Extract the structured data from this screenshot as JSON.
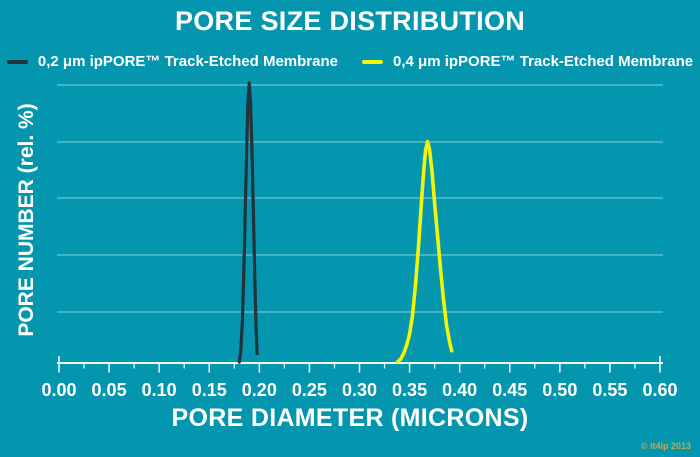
{
  "page": {
    "background_color": "#0496AE",
    "text_color": "#FFFFFF"
  },
  "chart": {
    "title": "PORE SIZE DISTRIBUTION",
    "xlabel": "PORE DIAMETER (MICRONS)",
    "ylabel": "PORE NUMBER (rel. %)"
  },
  "legend": {
    "items": [
      {
        "label": "0,2 μm ipPORE™ Track-Etched Membrane",
        "color": "#22333B"
      },
      {
        "label": "0,4 μm ipPORE™ Track-Etched Membrane",
        "color": "#F2F50A"
      }
    ]
  },
  "footer": {
    "watermark": "© it4ip 2013",
    "watermark_color": "#C9A64E"
  },
  "chart_data": {
    "type": "line",
    "title": "PORE SIZE DISTRIBUTION",
    "xlabel": "PORE DIAMETER (MICRONS)",
    "ylabel": "PORE NUMBER (rel. %)",
    "xlim": [
      0.0,
      0.6
    ],
    "ylim": [
      0,
      100
    ],
    "x_tick_step": 0.05,
    "x_minor_tick_step": 0.025,
    "x_tick_labels": [
      "0.00",
      "0.05",
      "0.10",
      "0.15",
      "0.20",
      "0.25",
      "0.30",
      "0.35",
      "0.40",
      "0.45",
      "0.50",
      "0.55",
      "0.60"
    ],
    "y_tick_labels": [],
    "grid": "horizontal",
    "y_gridline_count": 5,
    "legend_position": "top",
    "axis_color": "#EAF6F8",
    "gridline_color": "rgba(255,255,255,0.42)",
    "series": [
      {
        "name": "0,2 μm ipPORE™ Track-Etched Membrane",
        "color": "#22333B",
        "stroke_width": 3.2,
        "peak_x": 0.19,
        "peak_y": 100,
        "points": [
          [
            0.18,
            0
          ],
          [
            0.1815,
            4
          ],
          [
            0.183,
            14
          ],
          [
            0.1845,
            32
          ],
          [
            0.186,
            55
          ],
          [
            0.1875,
            78
          ],
          [
            0.1885,
            92
          ],
          [
            0.19,
            100
          ],
          [
            0.1912,
            93
          ],
          [
            0.1925,
            78
          ],
          [
            0.194,
            55
          ],
          [
            0.1955,
            30
          ],
          [
            0.1968,
            12
          ],
          [
            0.1978,
            3
          ]
        ]
      },
      {
        "name": "0,4 μm ipPORE™ Track-Etched Membrane",
        "color": "#F2F50A",
        "stroke_width": 3.6,
        "peak_x": 0.368,
        "peak_y": 79,
        "points": [
          [
            0.338,
            0
          ],
          [
            0.341,
            1
          ],
          [
            0.344,
            3
          ],
          [
            0.347,
            6
          ],
          [
            0.35,
            10
          ],
          [
            0.353,
            17
          ],
          [
            0.356,
            28
          ],
          [
            0.359,
            42
          ],
          [
            0.362,
            58
          ],
          [
            0.364,
            68
          ],
          [
            0.366,
            76
          ],
          [
            0.368,
            79
          ],
          [
            0.37,
            76
          ],
          [
            0.3725,
            68
          ],
          [
            0.375,
            57
          ],
          [
            0.378,
            45
          ],
          [
            0.381,
            33
          ],
          [
            0.384,
            22
          ],
          [
            0.387,
            13
          ],
          [
            0.39,
            7
          ],
          [
            0.392,
            4
          ]
        ]
      }
    ]
  }
}
